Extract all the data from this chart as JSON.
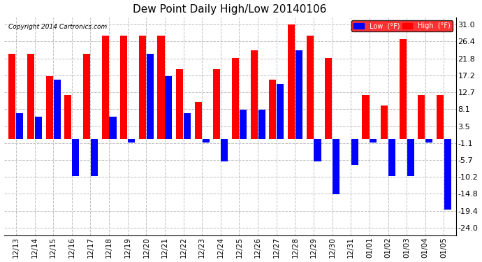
{
  "title": "Dew Point Daily High/Low 20140106",
  "copyright": "Copyright 2014 Cartronics.com",
  "dates": [
    "12/13",
    "12/14",
    "12/15",
    "12/16",
    "12/17",
    "12/18",
    "12/19",
    "12/20",
    "12/21",
    "12/22",
    "12/23",
    "12/24",
    "12/25",
    "12/26",
    "12/27",
    "12/28",
    "12/29",
    "12/30",
    "12/31",
    "01/01",
    "01/02",
    "01/03",
    "01/04",
    "01/05"
  ],
  "high": [
    23,
    23,
    17,
    12,
    23,
    28,
    28,
    28,
    28,
    19,
    10,
    19,
    22,
    24,
    16,
    31,
    28,
    22,
    0,
    12,
    9,
    27,
    12,
    12
  ],
  "low": [
    7,
    6,
    16,
    -10,
    -10,
    6,
    -1,
    23,
    17,
    7,
    -1,
    -6,
    8,
    8,
    15,
    24,
    -6,
    -15,
    -7,
    -1,
    -10,
    -10,
    -1,
    -19
  ],
  "high_color": "#ff0000",
  "low_color": "#0000ff",
  "bg_color": "#ffffff",
  "grid_color": "#c0c0c0",
  "yticks": [
    -24.0,
    -19.4,
    -14.8,
    -10.2,
    -5.7,
    -1.1,
    3.5,
    8.1,
    12.7,
    17.2,
    21.8,
    26.4,
    31.0
  ],
  "ylim": [
    -26,
    33
  ],
  "figsize": [
    6.9,
    3.75
  ],
  "dpi": 100
}
